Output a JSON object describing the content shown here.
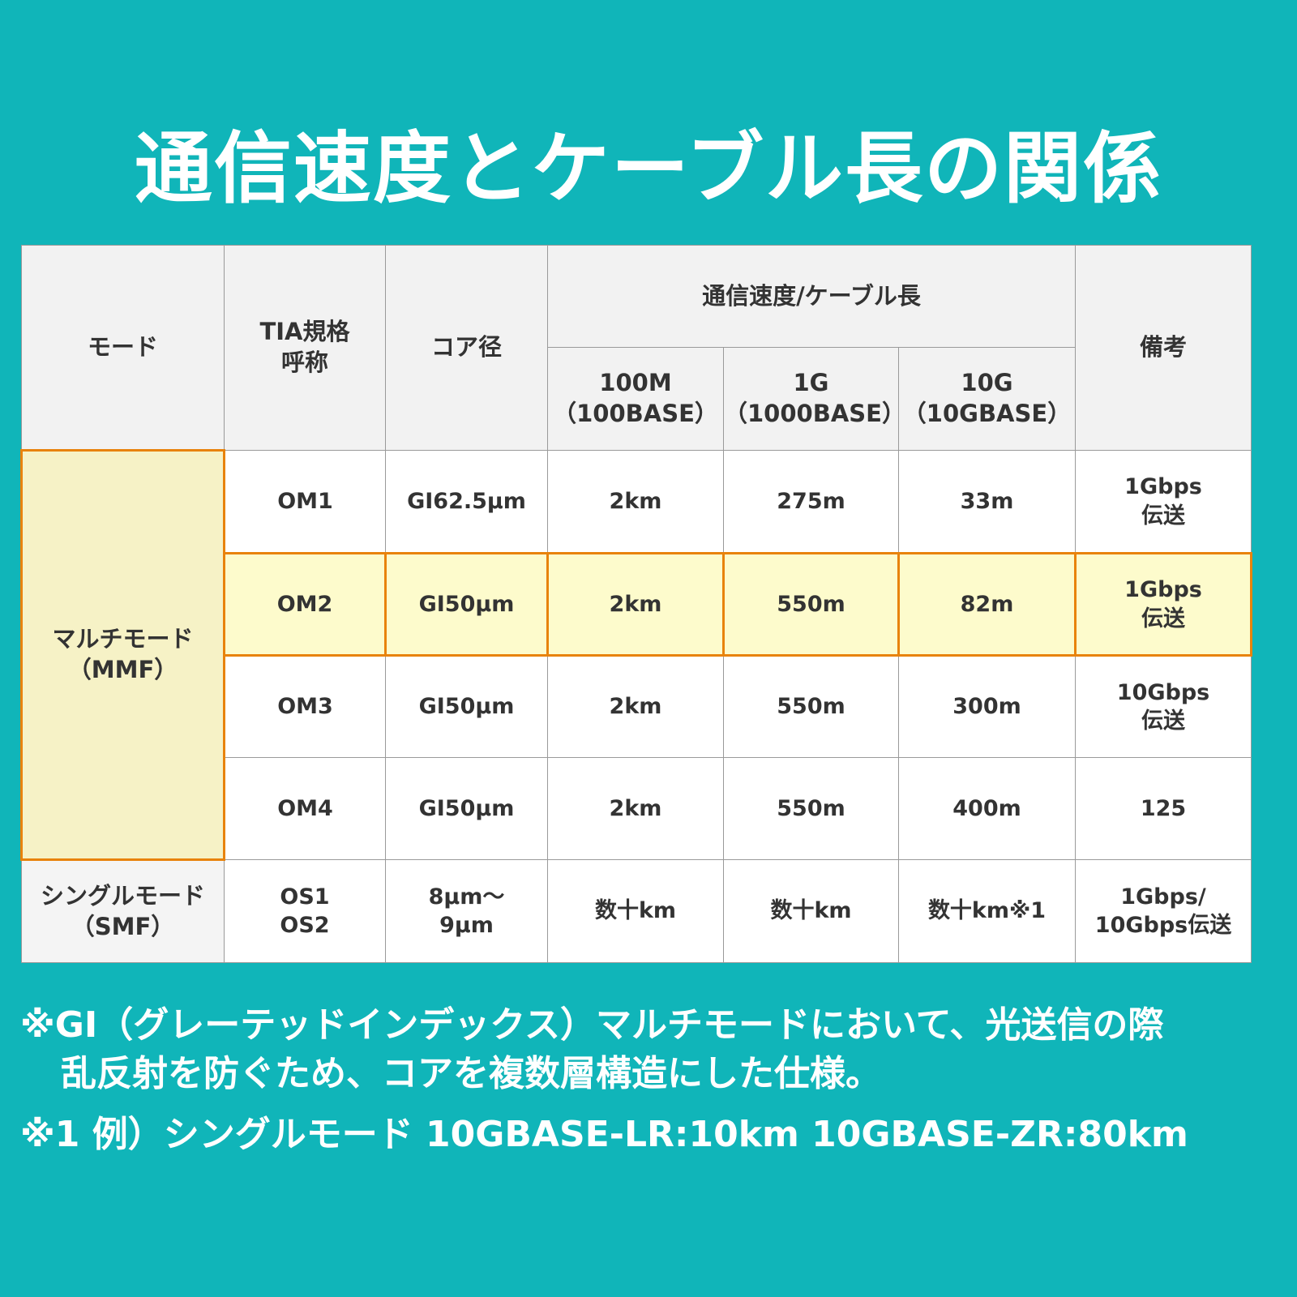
{
  "title": "通信速度とケーブル長の関係",
  "colors": {
    "background": "#10b5b9",
    "highlight_border": "#e8830c",
    "highlight_fill": "#fdfbcc",
    "header_fill": "#f2f2f2"
  },
  "table": {
    "headers": {
      "mode": "モード",
      "tia": "TIA規格\n呼称",
      "core": "コア径",
      "speed_group": "通信速度/ケーブル長",
      "s100": "100M\n（100BASE）",
      "s1g": "1G\n（1000BASE）",
      "s10g": "10G\n（10GBASE）",
      "note": "備考"
    },
    "mmf_label": "マルチモード\n（MMF）",
    "smf_label": "シングルモード\n（SMF）",
    "rows": [
      {
        "tia": "OM1",
        "core": "GI62.5μm",
        "s100": "2km",
        "s1g": "275m",
        "s10g": "33m",
        "note": "1Gbps\n伝送"
      },
      {
        "tia": "OM2",
        "core": "GI50μm",
        "s100": "2km",
        "s1g": "550m",
        "s10g": "82m",
        "note": "1Gbps\n伝送"
      },
      {
        "tia": "OM3",
        "core": "GI50μm",
        "s100": "2km",
        "s1g": "550m",
        "s10g": "300m",
        "note": "10Gbps\n伝送"
      },
      {
        "tia": "OM4",
        "core": "GI50μm",
        "s100": "2km",
        "s1g": "550m",
        "s10g": "400m",
        "note": "125"
      },
      {
        "tia": "OS1\nOS2",
        "core": "8μm～\n9μm",
        "s100": "数十km",
        "s1g": "数十km",
        "s10g": "数十km※1",
        "note": "1Gbps/\n10Gbps伝送"
      }
    ]
  },
  "notes": {
    "gi_line1": "※GI（グレーテッドインデックス）マルチモードにおいて、光送信の際",
    "gi_line2": "乱反射を防ぐため、コアを複数層構造にした仕様。",
    "note1": "※1 例）シングルモード 10GBASE-LR:10km 10GBASE-ZR:80km"
  }
}
